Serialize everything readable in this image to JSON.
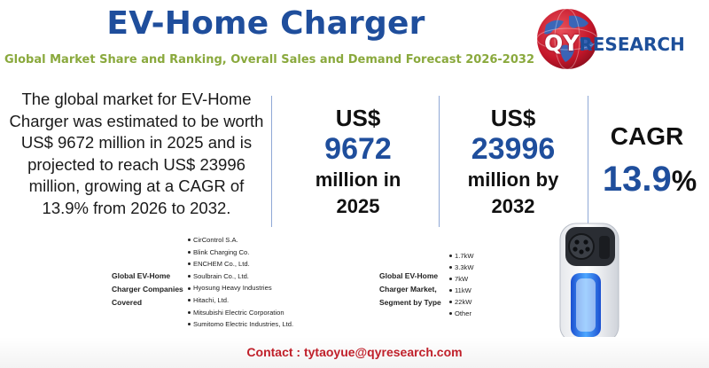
{
  "header": {
    "title": "EV-Home Charger",
    "subtitle": "Global Market Share and Ranking, Overall Sales and Demand Forecast 2026-2032"
  },
  "logo": {
    "prefix": "QY",
    "suffix": "RESEARCH"
  },
  "description": "The global market for EV-Home Charger was estimated to be worth US$ 9672 million in 2025 and is projected to reach US$ 23996 million, growing at a CAGR of 13.9% from 2026 to 2032.",
  "stats": [
    {
      "currency": "US$",
      "value": "9672",
      "label_line1": "million in",
      "label_line2": "2025"
    },
    {
      "currency": "US$",
      "value": "23996",
      "label_line1": "million by",
      "label_line2": "2032"
    }
  ],
  "cagr": {
    "label": "CAGR",
    "value": "13.9",
    "unit": "%"
  },
  "companies": {
    "label_lines": [
      "Global EV-Home",
      "Charger Companies",
      "Covered"
    ],
    "items": [
      "CirControl S.A.",
      "Blink Charging Co.",
      "ENCHEM Co., Ltd.",
      "Soulbrain Co., Ltd.",
      "Hyosung Heavy Industries",
      "Hitachi, Ltd.",
      "Mitsubishi Electric Corporation",
      "Sumitomo Electric Industries, Ltd."
    ]
  },
  "segments": {
    "label_lines": [
      "Global EV-Home",
      "Charger Market,",
      "Segment by Type"
    ],
    "items": [
      "1.7kW",
      "3.3kW",
      "7kW",
      "11kW",
      "22kW",
      "Other"
    ]
  },
  "contact": "Contact : tytaoyue@qyresearch.com",
  "colors": {
    "title": "#1f4e9c",
    "subtitle": "#8aa93d",
    "contact": "#c0202a",
    "accent_blue": "#1f4e9c"
  }
}
